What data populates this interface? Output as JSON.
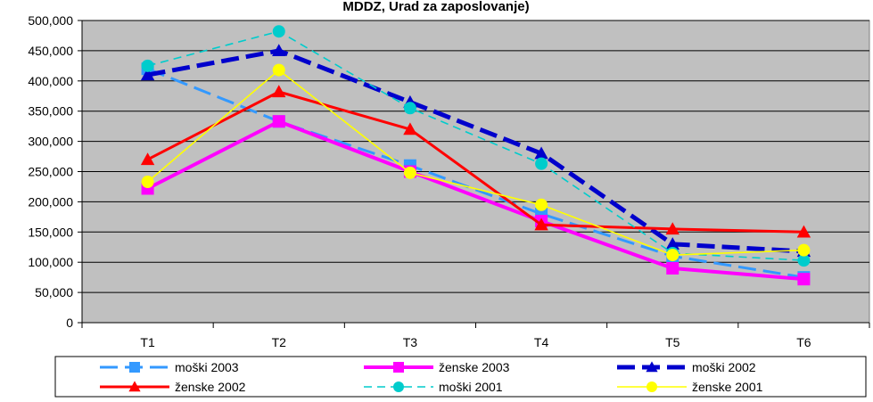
{
  "chart_data": {
    "type": "line",
    "title": "MDDZ, Urad za zaposlovanje)",
    "xlabel": "",
    "ylabel": "",
    "ylim": [
      0,
      500000
    ],
    "yticks": [
      "0",
      "50,000",
      "100,000",
      "150,000",
      "200,000",
      "250,000",
      "300,000",
      "350,000",
      "400,000",
      "450,000",
      "500,000"
    ],
    "categories": [
      "T1",
      "T2",
      "T3",
      "T4",
      "T5",
      "T6"
    ],
    "plot_background": "#c0c0c0",
    "grid": true,
    "legend_position": "bottom",
    "series": [
      {
        "name": "moški 2003",
        "color": "#3399ff",
        "dash": "long-dash",
        "marker": "square",
        "values": [
          420000,
          333000,
          260000,
          180000,
          110000,
          75000
        ]
      },
      {
        "name": "ženske 2003",
        "color": "#ff00ff",
        "dash": "solid",
        "marker": "square",
        "values": [
          222000,
          333000,
          250000,
          168000,
          90000,
          72000
        ]
      },
      {
        "name": "moški 2002",
        "color": "#0000cc",
        "dash": "long-dash",
        "marker": "triangle",
        "values": [
          410000,
          450000,
          365000,
          280000,
          130000,
          118000
        ]
      },
      {
        "name": "ženske 2002",
        "color": "#ff0000",
        "dash": "solid",
        "marker": "triangle",
        "values": [
          270000,
          382000,
          320000,
          162000,
          155000,
          150000
        ]
      },
      {
        "name": "moški 2001",
        "color": "#00cccc",
        "dash": "dash",
        "marker": "circle",
        "values": [
          425000,
          482000,
          355000,
          263000,
          115000,
          103000
        ]
      },
      {
        "name": "ženske 2001",
        "color": "#ffff00",
        "dash": "solid",
        "marker": "circle",
        "values": [
          233000,
          418000,
          248000,
          195000,
          112000,
          120000
        ]
      }
    ]
  }
}
